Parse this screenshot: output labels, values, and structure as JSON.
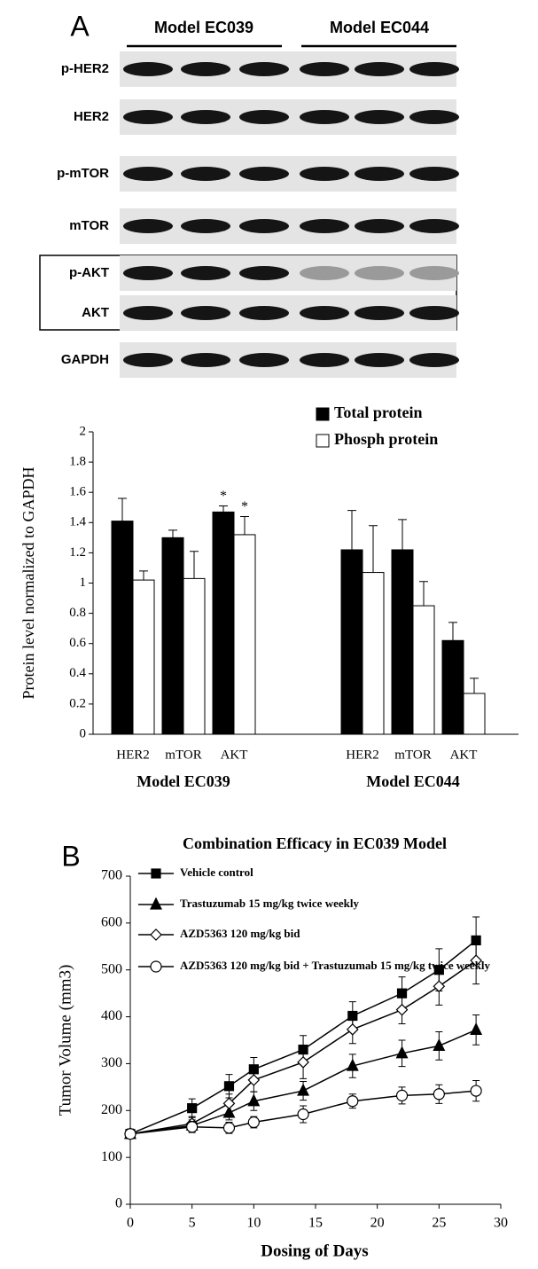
{
  "panel_labels": [
    "A",
    "B"
  ],
  "blot": {
    "groups": [
      "Model EC039",
      "Model EC044"
    ],
    "rows": [
      "p-HER2",
      "HER2",
      "p-mTOR",
      "mTOR",
      "p-AKT",
      "AKT",
      "GAPDH"
    ]
  },
  "chart_data": [
    {
      "type": "bar",
      "ylabel": "Protein level normalized to GAPDH",
      "categories": [
        "HER2",
        "mTOR",
        "AKT",
        "HER2",
        "mTOR",
        "AKT"
      ],
      "groups": [
        "Model EC039",
        "Model EC044"
      ],
      "series": [
        {
          "name": "Total protein",
          "color": "#000000",
          "values": [
            1.41,
            1.3,
            1.47,
            1.22,
            1.22,
            0.62
          ],
          "errors": [
            0.15,
            0.05,
            0.04,
            0.26,
            0.2,
            0.12
          ],
          "significance": [
            null,
            null,
            "*",
            null,
            null,
            null
          ]
        },
        {
          "name": "Phosph protein",
          "color": "#ffffff",
          "values": [
            1.02,
            1.03,
            1.32,
            1.07,
            0.85,
            0.27
          ],
          "errors": [
            0.06,
            0.18,
            0.12,
            0.31,
            0.16,
            0.1
          ],
          "significance": [
            null,
            null,
            "*",
            null,
            null,
            null
          ]
        }
      ],
      "ylim": [
        0,
        2
      ],
      "yticks": [
        0,
        0.2,
        0.4,
        0.6,
        0.8,
        1,
        1.2,
        1.4,
        1.6,
        1.8,
        2
      ],
      "legend": "top-right"
    },
    {
      "type": "line",
      "title": "Combination Efficacy in EC039 Model",
      "xlabel": "Dosing of Days",
      "ylabel": "Tumor Volume (mm3)",
      "x": [
        0,
        5,
        8,
        10,
        14,
        18,
        22,
        25,
        28
      ],
      "series": [
        {
          "name": "Vehicle control",
          "color": "#000000",
          "marker": "square",
          "fill": "#000000",
          "values": [
            150,
            205,
            252,
            288,
            330,
            402,
            450,
            500,
            563
          ],
          "errors": [
            10,
            20,
            25,
            25,
            30,
            30,
            35,
            45,
            50
          ]
        },
        {
          "name": "Trastuzumab 15 mg/kg twice weekly",
          "color": "#000000",
          "marker": "triangle",
          "fill": "#000000",
          "values": [
            150,
            168,
            195,
            220,
            242,
            295,
            322,
            338,
            372
          ],
          "errors": [
            10,
            12,
            15,
            20,
            20,
            25,
            28,
            30,
            32
          ]
        },
        {
          "name": "AZD5363 120 mg/kg bid",
          "color": "#000000",
          "marker": "diamond",
          "fill": "#ffffff",
          "values": [
            150,
            172,
            215,
            265,
            303,
            373,
            415,
            465,
            520
          ],
          "errors": [
            10,
            15,
            20,
            25,
            35,
            30,
            30,
            40,
            50
          ]
        },
        {
          "name": "AZD5363 120 mg/kg bid + Trastuzumab 15 mg/kg twice weekly",
          "color": "#000000",
          "marker": "circle",
          "fill": "#ffffff",
          "values": [
            150,
            165,
            163,
            175,
            192,
            220,
            232,
            235,
            242
          ],
          "errors": [
            10,
            12,
            12,
            12,
            18,
            15,
            18,
            20,
            22
          ]
        }
      ],
      "xlim": [
        0,
        30
      ],
      "xticks": [
        0,
        5,
        10,
        15,
        20,
        25,
        30
      ],
      "ylim": [
        0,
        700
      ],
      "yticks": [
        0,
        100,
        200,
        300,
        400,
        500,
        600,
        700
      ],
      "legend": "top-left"
    }
  ]
}
